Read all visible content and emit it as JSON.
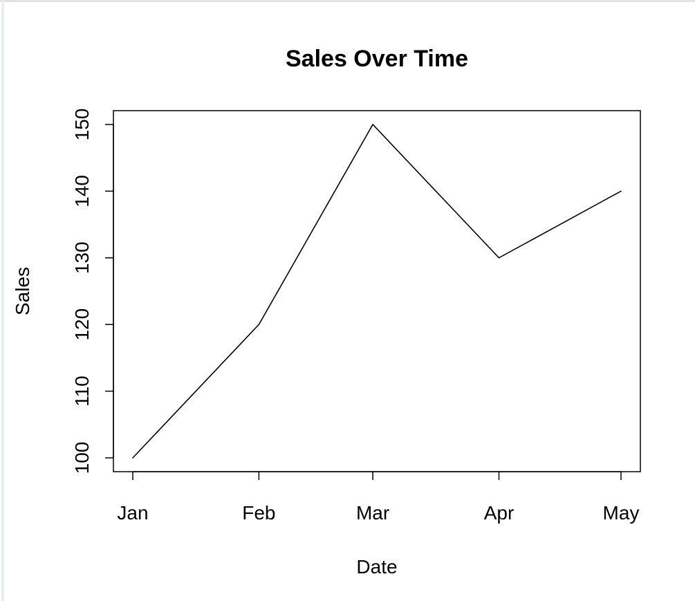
{
  "chart_data": {
    "type": "line",
    "title": "Sales Over Time",
    "xlabel": "Date",
    "ylabel": "Sales",
    "categories": [
      "Jan",
      "Feb",
      "Mar",
      "Apr",
      "May"
    ],
    "x": [
      "2023-01-01",
      "2023-02-01",
      "2023-03-01",
      "2023-04-01",
      "2023-05-01"
    ],
    "series": [
      {
        "values": [
          100,
          120,
          150,
          130,
          140
        ]
      }
    ],
    "yticks": [
      "100",
      "110",
      "120",
      "130",
      "140",
      "150"
    ],
    "ylim": [
      100,
      150
    ],
    "grid": false,
    "legend": "none",
    "colors": {
      "line": "#000000",
      "axis": "#000000",
      "background": "#ffffff",
      "frame_border": "#dfe3e6"
    }
  }
}
